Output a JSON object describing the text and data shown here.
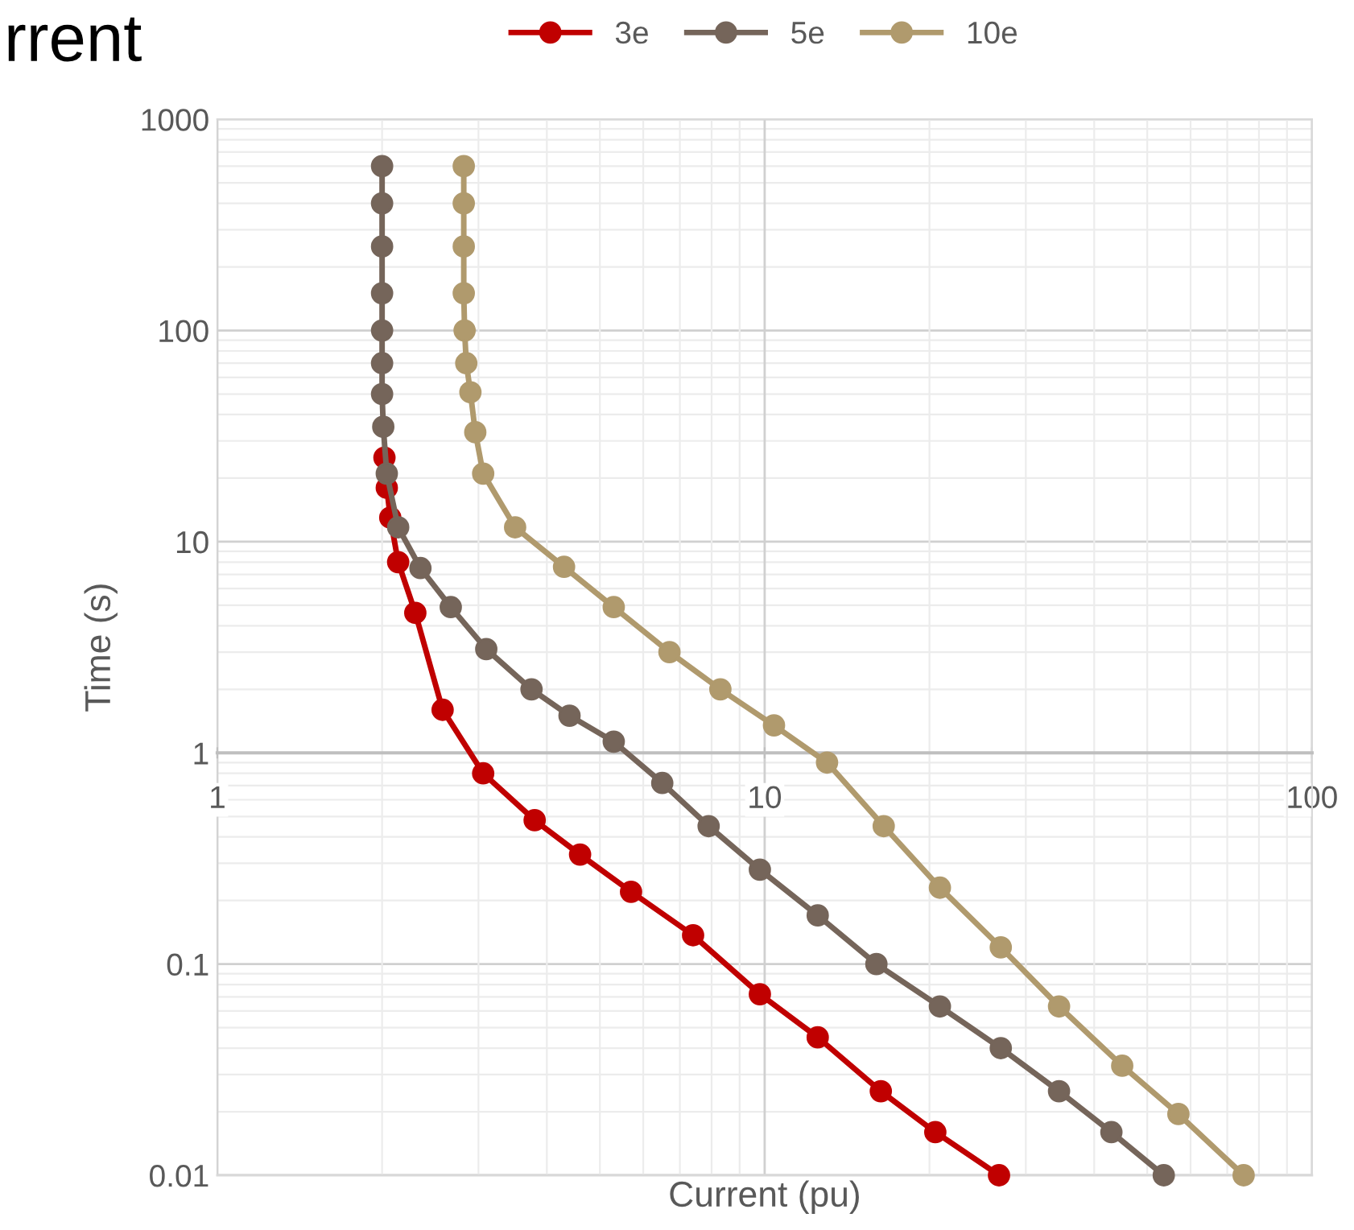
{
  "chart_data": {
    "type": "line",
    "title": "rrent",
    "xlabel": "Current (pu)",
    "ylabel": "Time (s)",
    "log": "xy",
    "xlim": [
      1,
      100
    ],
    "ylim": [
      0.01,
      1000
    ],
    "xticks": [
      1,
      10,
      100
    ],
    "yticks": [
      0.01,
      0.1,
      1,
      10,
      100,
      1000
    ],
    "grid": true,
    "legend": "top",
    "marker": "circle",
    "line_style": "solid",
    "series": [
      {
        "name": "3e",
        "color": "#c00000",
        "x": [
          2.02,
          2.04,
          2.07,
          2.14,
          2.3,
          2.58,
          3.06,
          3.8,
          4.6,
          5.7,
          7.4,
          9.8,
          12.5,
          16.3,
          20.5,
          26.8
        ],
        "values": [
          25,
          18,
          13,
          8,
          4.6,
          1.6,
          0.8,
          0.48,
          0.33,
          0.22,
          0.137,
          0.072,
          0.045,
          0.025,
          0.016,
          0.01
        ]
      },
      {
        "name": "5e",
        "color": "#75655a",
        "x": [
          2.0,
          2.0,
          2.0,
          2.0,
          2.0,
          2.0,
          2.0,
          2.01,
          2.04,
          2.14,
          2.35,
          2.67,
          3.1,
          3.75,
          4.4,
          5.3,
          6.5,
          7.9,
          9.8,
          12.5,
          16,
          20.9,
          27,
          34.5,
          43,
          53.6
        ],
        "values": [
          600,
          400,
          250,
          150,
          100,
          70,
          50,
          35,
          21,
          11.7,
          7.5,
          4.9,
          3.1,
          2.0,
          1.5,
          1.13,
          0.72,
          0.45,
          0.28,
          0.17,
          0.1,
          0.063,
          0.04,
          0.025,
          0.016,
          0.01
        ]
      },
      {
        "name": "10e",
        "color": "#b09a6d",
        "x": [
          2.82,
          2.82,
          2.82,
          2.82,
          2.83,
          2.85,
          2.9,
          2.96,
          3.06,
          3.5,
          4.3,
          5.3,
          6.7,
          8.3,
          10.4,
          13,
          16.5,
          20.9,
          27,
          34.5,
          45,
          57,
          75
        ],
        "values": [
          600,
          400,
          250,
          150,
          100,
          70,
          51,
          33,
          21,
          11.7,
          7.6,
          4.9,
          3.0,
          2.0,
          1.35,
          0.9,
          0.45,
          0.23,
          0.12,
          0.063,
          0.033,
          0.0195,
          0.01
        ]
      }
    ]
  }
}
